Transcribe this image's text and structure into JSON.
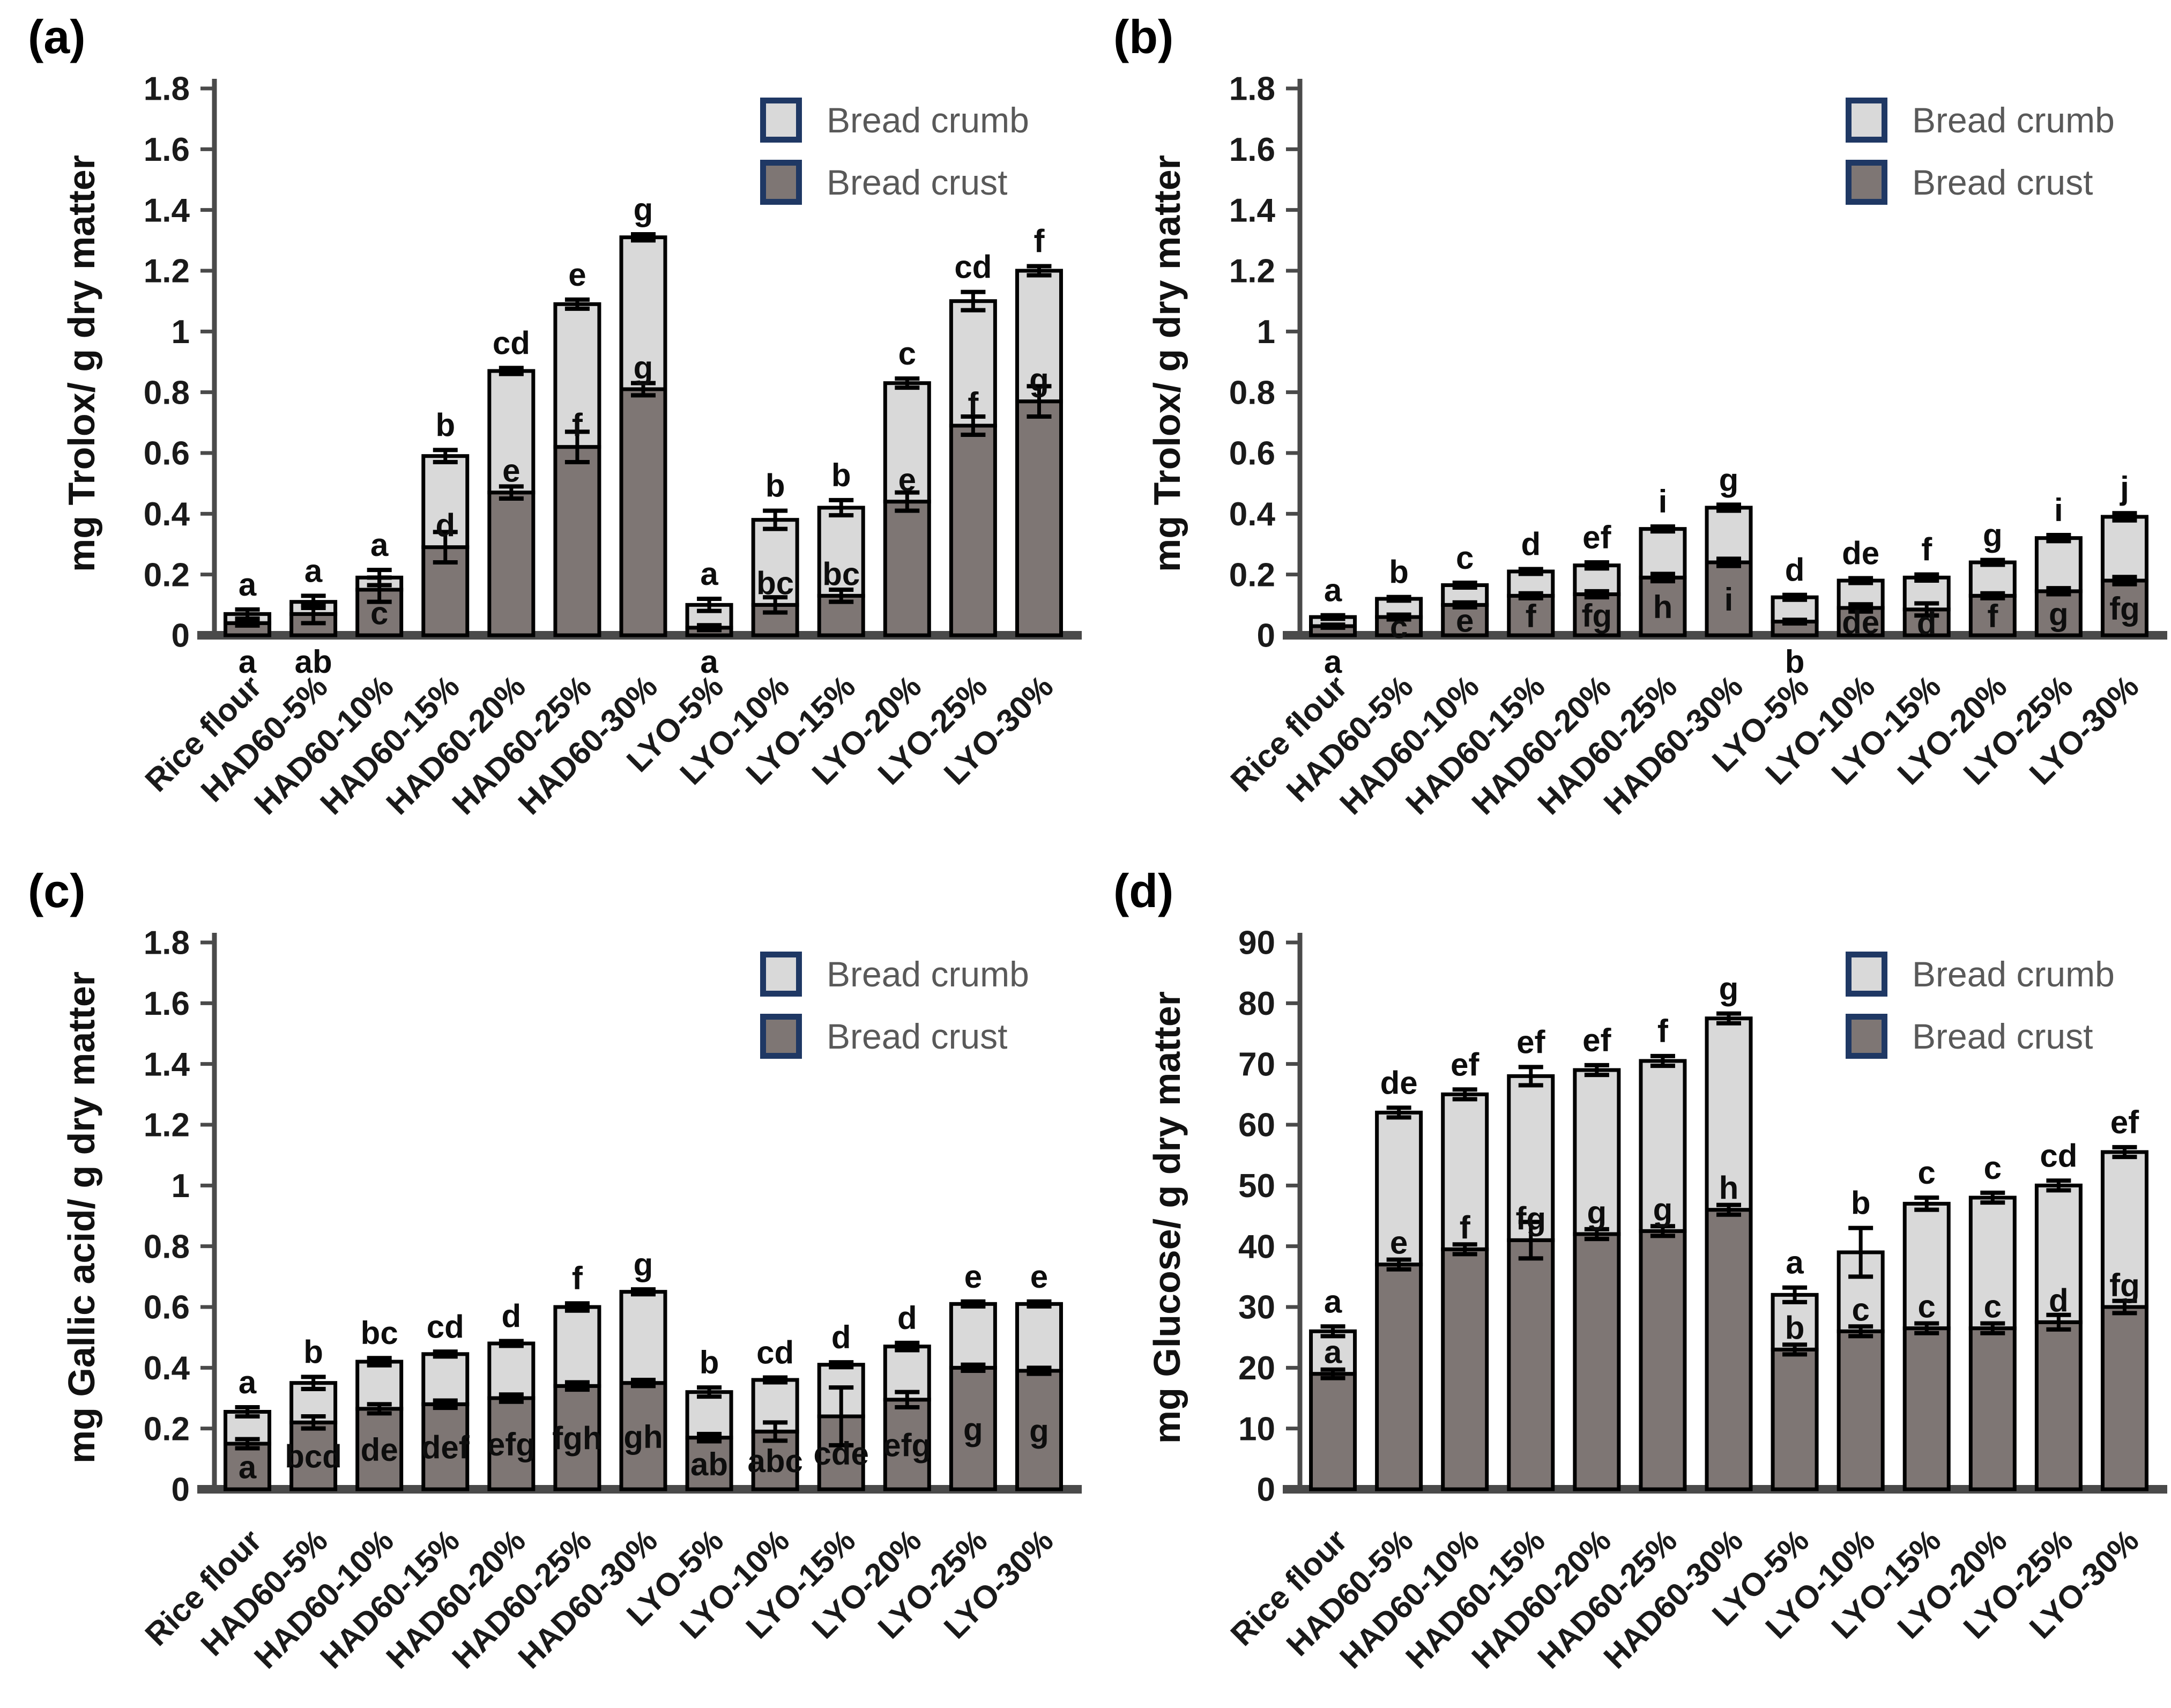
{
  "legend": {
    "crumb_label": "Bread crumb",
    "crust_label": "Bread crust"
  },
  "colors": {
    "crumb_fill": "#d9d9d9",
    "crust_fill": "#7e7674",
    "bar_border": "#000000",
    "legend_swatch_border": "#1f3864",
    "axis": "#4a4a4a",
    "text": "#1a1a1a",
    "legend_text": "#595959"
  },
  "chart_data": [
    {
      "id": "a",
      "label": "(a)",
      "type": "bar",
      "stacked": true,
      "ylabel": "mg Trolox/ g dry matter",
      "ylim": [
        0,
        1.8
      ],
      "yticks": [
        0,
        0.2,
        0.4,
        0.6,
        0.8,
        1,
        1.2,
        1.4,
        1.6,
        1.8
      ],
      "ytick_labels": [
        "0",
        "0.2",
        "0.4",
        "0.6",
        "0.8",
        "1",
        "1.2",
        "1.4",
        "1.6",
        "1.8"
      ],
      "grid": false,
      "legend_position": "top-right",
      "series_names": [
        "Bread crumb",
        "Bread crust"
      ],
      "categories": [
        "Rice flour",
        "HAD60-5%",
        "HAD60-10%",
        "HAD60-15%",
        "HAD60-20%",
        "HAD60-25%",
        "HAD60-30%",
        "LYO-5%",
        "LYO-10%",
        "LYO-15%",
        "LYO-20%",
        "LYO-25%",
        "LYO-30%"
      ],
      "crust": {
        "values": [
          0.04,
          0.07,
          0.15,
          0.29,
          0.47,
          0.62,
          0.81,
          0.025,
          0.1,
          0.13,
          0.44,
          0.69,
          0.77
        ],
        "errors": [
          0.008,
          0.03,
          0.04,
          0.05,
          0.02,
          0.05,
          0.02,
          0.008,
          0.025,
          0.02,
          0.03,
          0.03,
          0.05
        ],
        "letters": [
          "a",
          "ab",
          "c",
          "d",
          "e",
          "f",
          "g",
          "a",
          "bc",
          "bc",
          "e",
          "f",
          "g"
        ],
        "letter_pos": [
          "below-axis",
          "below-axis",
          "mid",
          "above",
          "above",
          "above",
          "above",
          "below-axis",
          "above",
          "above",
          "above",
          "above",
          "above"
        ]
      },
      "total": {
        "values": [
          0.07,
          0.11,
          0.19,
          0.59,
          0.87,
          1.09,
          1.31,
          0.1,
          0.38,
          0.42,
          0.83,
          1.1,
          1.2
        ],
        "errors": [
          0.015,
          0.02,
          0.025,
          0.02,
          0.01,
          0.015,
          0.01,
          0.02,
          0.03,
          0.025,
          0.015,
          0.03,
          0.015
        ],
        "letters": [
          "a",
          "a",
          "a",
          "b",
          "cd",
          "e",
          "g",
          "a",
          "b",
          "b",
          "c",
          "cd",
          "f"
        ]
      }
    },
    {
      "id": "b",
      "label": "(b)",
      "type": "bar",
      "stacked": true,
      "ylabel": "mg Trolox/ g dry matter",
      "ylim": [
        0,
        1.8
      ],
      "yticks": [
        0,
        0.2,
        0.4,
        0.6,
        0.8,
        1,
        1.2,
        1.4,
        1.6,
        1.8
      ],
      "ytick_labels": [
        "0",
        "0.2",
        "0.4",
        "0.6",
        "0.8",
        "1",
        "1.2",
        "1.4",
        "1.6",
        "1.8"
      ],
      "grid": false,
      "legend_position": "top-right",
      "series_names": [
        "Bread crumb",
        "Bread crust"
      ],
      "categories": [
        "Rice flour",
        "HAD60-5%",
        "HAD60-10%",
        "HAD60-15%",
        "HAD60-20%",
        "HAD60-25%",
        "HAD60-30%",
        "LYO-5%",
        "LYO-10%",
        "LYO-15%",
        "LYO-20%",
        "LYO-25%",
        "LYO-30%"
      ],
      "crust": {
        "values": [
          0.03,
          0.06,
          0.1,
          0.13,
          0.135,
          0.19,
          0.24,
          0.045,
          0.09,
          0.085,
          0.13,
          0.145,
          0.18
        ],
        "errors": [
          0.005,
          0.008,
          0.008,
          0.008,
          0.01,
          0.012,
          0.012,
          0.006,
          0.012,
          0.02,
          0.008,
          0.01,
          0.012
        ],
        "letters": [
          "a",
          "c",
          "e",
          "f",
          "fg",
          "h",
          "i",
          "b",
          "de",
          "d",
          "f",
          "g",
          "fg"
        ],
        "letter_pos": [
          "below-axis",
          "mid",
          "mid",
          "mid",
          "mid",
          "mid",
          "mid",
          "below-axis",
          "mid",
          "mid",
          "mid",
          "mid",
          "mid"
        ]
      },
      "total": {
        "values": [
          0.06,
          0.12,
          0.165,
          0.21,
          0.23,
          0.35,
          0.42,
          0.125,
          0.18,
          0.19,
          0.24,
          0.32,
          0.39
        ],
        "errors": [
          0.006,
          0.006,
          0.008,
          0.008,
          0.01,
          0.008,
          0.01,
          0.008,
          0.008,
          0.01,
          0.008,
          0.01,
          0.012
        ],
        "letters": [
          "a",
          "b",
          "c",
          "d",
          "ef",
          "i",
          "g",
          "d",
          "de",
          "f",
          "g",
          "i",
          "j"
        ]
      }
    },
    {
      "id": "c",
      "label": "(c)",
      "type": "bar",
      "stacked": true,
      "ylabel": "mg Gallic acid/ g dry matter",
      "ylim": [
        0,
        1.8
      ],
      "yticks": [
        0,
        0.2,
        0.4,
        0.6,
        0.8,
        1,
        1.2,
        1.4,
        1.6,
        1.8
      ],
      "ytick_labels": [
        "0",
        "0.2",
        "0.4",
        "0.6",
        "0.8",
        "1",
        "1.2",
        "1.4",
        "1.6",
        "1.8"
      ],
      "grid": false,
      "legend_position": "top-right",
      "series_names": [
        "Bread crumb",
        "Bread crust"
      ],
      "categories": [
        "Rice flour",
        "HAD60-5%",
        "HAD60-10%",
        "HAD60-15%",
        "HAD60-20%",
        "HAD60-25%",
        "HAD60-30%",
        "LYO-5%",
        "LYO-10%",
        "LYO-15%",
        "LYO-20%",
        "LYO-25%",
        "LYO-30%"
      ],
      "crust": {
        "values": [
          0.15,
          0.22,
          0.265,
          0.28,
          0.3,
          0.34,
          0.35,
          0.17,
          0.19,
          0.24,
          0.295,
          0.4,
          0.39
        ],
        "errors": [
          0.015,
          0.02,
          0.015,
          0.012,
          0.012,
          0.012,
          0.01,
          0.012,
          0.03,
          0.095,
          0.025,
          0.01,
          0.01
        ],
        "letters": [
          "a",
          "bcd",
          "de",
          "def",
          "efg",
          "fgh",
          "gh",
          "ab",
          "abc",
          "cde",
          "efg",
          "g",
          "g"
        ],
        "letter_pos": [
          "mid",
          "mid",
          "mid",
          "mid",
          "mid",
          "mid",
          "mid",
          "mid",
          "mid",
          "mid",
          "mid",
          "mid",
          "mid"
        ]
      },
      "total": {
        "values": [
          0.255,
          0.35,
          0.42,
          0.445,
          0.48,
          0.6,
          0.65,
          0.32,
          0.36,
          0.41,
          0.47,
          0.61,
          0.61
        ],
        "errors": [
          0.015,
          0.02,
          0.012,
          0.008,
          0.008,
          0.012,
          0.008,
          0.015,
          0.008,
          0.008,
          0.012,
          0.008,
          0.008
        ],
        "letters": [
          "a",
          "b",
          "bc",
          "cd",
          "d",
          "f",
          "g",
          "b",
          "cd",
          "d",
          "d",
          "e",
          "e"
        ]
      }
    },
    {
      "id": "d",
      "label": "(d)",
      "type": "bar",
      "stacked": true,
      "ylabel": "mg Glucose/ g dry matter",
      "ylim": [
        0,
        90
      ],
      "yticks": [
        0,
        10,
        20,
        30,
        40,
        50,
        60,
        70,
        80,
        90
      ],
      "ytick_labels": [
        "0",
        "10",
        "20",
        "30",
        "40",
        "50",
        "60",
        "70",
        "80",
        "90"
      ],
      "grid": false,
      "legend_position": "top-right",
      "series_names": [
        "Bread crumb",
        "Bread crust"
      ],
      "categories": [
        "Rice flour",
        "HAD60-5%",
        "HAD60-10%",
        "HAD60-15%",
        "HAD60-20%",
        "HAD60-25%",
        "HAD60-30%",
        "LYO-5%",
        "LYO-10%",
        "LYO-15%",
        "LYO-20%",
        "LYO-25%",
        "LYO-30%"
      ],
      "crust": {
        "values": [
          19,
          37,
          39.5,
          41,
          42,
          42.5,
          46,
          23,
          26,
          26.5,
          26.5,
          27.5,
          30
        ],
        "errors": [
          0.7,
          0.8,
          0.8,
          3,
          0.8,
          0.8,
          0.8,
          0.8,
          0.8,
          0.8,
          0.8,
          1.2,
          1
        ],
        "letters": [
          "a",
          "e",
          "f",
          "fg",
          "g",
          "g",
          "h",
          "b",
          "c",
          "c",
          "c",
          "d",
          "fg"
        ],
        "letter_pos": [
          "above",
          "above",
          "above",
          "above",
          "above",
          "above",
          "above",
          "above",
          "above",
          "above",
          "above",
          "above",
          "above"
        ]
      },
      "total": {
        "values": [
          26,
          62,
          65,
          68,
          69,
          70.5,
          77.5,
          32,
          39,
          47,
          48,
          50,
          55.5
        ],
        "errors": [
          0.8,
          0.8,
          0.8,
          1.5,
          0.8,
          0.8,
          0.8,
          1.2,
          4,
          1,
          0.8,
          0.8,
          0.8
        ],
        "letters": [
          "a",
          "de",
          "ef",
          "ef",
          "ef",
          "f",
          "g",
          "a",
          "b",
          "c",
          "c",
          "cd",
          "ef"
        ]
      }
    }
  ]
}
